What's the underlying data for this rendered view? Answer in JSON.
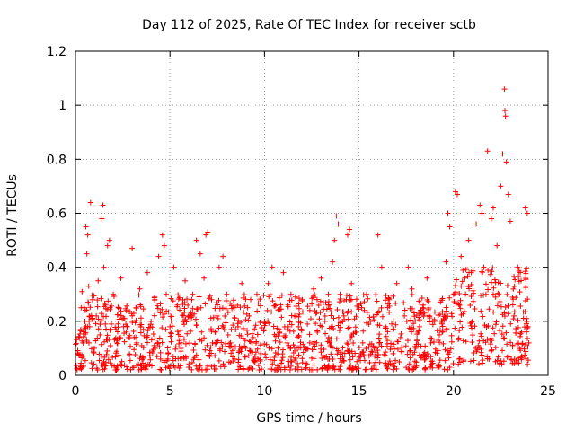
{
  "chart_data": {
    "type": "scatter",
    "title": "Day 112 of 2025, Rate Of TEC Index for receiver sctb",
    "xlabel": "GPS time / hours",
    "ylabel": "ROTI / TECUs",
    "xlim": [
      0,
      25
    ],
    "ylim": [
      0,
      1.2
    ],
    "xticks": [
      0,
      5,
      10,
      15,
      20,
      25
    ],
    "yticks": [
      0,
      0.2,
      0.4,
      0.6,
      0.8,
      1,
      1.2
    ],
    "xtick_labels": [
      "0",
      "5",
      "10",
      "15",
      "20",
      "25"
    ],
    "ytick_labels": [
      "0",
      "0.2",
      "0.4",
      "0.6",
      "0.8",
      "1",
      "1.2"
    ],
    "grid": true,
    "marker": "plus",
    "color": "#ff0000",
    "series": [
      {
        "points": [
          [
            0.1,
            0.08
          ],
          [
            0.2,
            0.14
          ],
          [
            0.3,
            0.25
          ],
          [
            0.35,
            0.31
          ],
          [
            0.4,
            0.12
          ],
          [
            0.5,
            0.2
          ],
          [
            0.55,
            0.55
          ],
          [
            0.6,
            0.45
          ],
          [
            0.65,
            0.52
          ],
          [
            0.7,
            0.33
          ],
          [
            0.75,
            0.18
          ],
          [
            0.8,
            0.64
          ],
          [
            0.9,
            0.28
          ],
          [
            1.0,
            0.1
          ],
          [
            1.1,
            0.22
          ],
          [
            1.2,
            0.35
          ],
          [
            1.3,
            0.15
          ],
          [
            1.4,
            0.58
          ],
          [
            1.45,
            0.63
          ],
          [
            1.5,
            0.4
          ],
          [
            1.6,
            0.26
          ],
          [
            1.7,
            0.48
          ],
          [
            1.8,
            0.5
          ],
          [
            1.9,
            0.19
          ],
          [
            2.0,
            0.3
          ],
          [
            2.2,
            0.12
          ],
          [
            2.4,
            0.36
          ],
          [
            2.6,
            0.21
          ],
          [
            2.8,
            0.14
          ],
          [
            3.0,
            0.47
          ],
          [
            3.2,
            0.25
          ],
          [
            3.4,
            0.32
          ],
          [
            3.6,
            0.17
          ],
          [
            3.8,
            0.38
          ],
          [
            4.0,
            0.2
          ],
          [
            4.2,
            0.28
          ],
          [
            4.4,
            0.44
          ],
          [
            4.6,
            0.52
          ],
          [
            4.7,
            0.48
          ],
          [
            4.8,
            0.3
          ],
          [
            5.0,
            0.18
          ],
          [
            5.2,
            0.4
          ],
          [
            5.4,
            0.26
          ],
          [
            5.6,
            0.12
          ],
          [
            5.8,
            0.35
          ],
          [
            6.0,
            0.22
          ],
          [
            6.2,
            0.3
          ],
          [
            6.4,
            0.5
          ],
          [
            6.6,
            0.45
          ],
          [
            6.8,
            0.36
          ],
          [
            6.9,
            0.52
          ],
          [
            7.0,
            0.53
          ],
          [
            7.2,
            0.28
          ],
          [
            7.4,
            0.16
          ],
          [
            7.6,
            0.4
          ],
          [
            7.8,
            0.44
          ],
          [
            8.0,
            0.3
          ],
          [
            8.2,
            0.12
          ],
          [
            8.4,
            0.25
          ],
          [
            8.6,
            0.18
          ],
          [
            8.8,
            0.34
          ],
          [
            9.0,
            0.1
          ],
          [
            9.2,
            0.22
          ],
          [
            9.4,
            0.14
          ],
          [
            9.6,
            0.3
          ],
          [
            9.8,
            0.08
          ],
          [
            10.0,
            0.2
          ],
          [
            10.2,
            0.34
          ],
          [
            10.4,
            0.4
          ],
          [
            10.6,
            0.26
          ],
          [
            10.8,
            0.16
          ],
          [
            11.0,
            0.38
          ],
          [
            11.2,
            0.12
          ],
          [
            11.4,
            0.3
          ],
          [
            11.6,
            0.22
          ],
          [
            11.8,
            0.18
          ],
          [
            12.0,
            0.28
          ],
          [
            12.2,
            0.1
          ],
          [
            12.4,
            0.24
          ],
          [
            12.6,
            0.32
          ],
          [
            12.8,
            0.16
          ],
          [
            13.0,
            0.36
          ],
          [
            13.2,
            0.2
          ],
          [
            13.4,
            0.14
          ],
          [
            13.6,
            0.42
          ],
          [
            13.7,
            0.5
          ],
          [
            13.8,
            0.59
          ],
          [
            13.9,
            0.56
          ],
          [
            14.0,
            0.3
          ],
          [
            14.2,
            0.22
          ],
          [
            14.4,
            0.52
          ],
          [
            14.5,
            0.54
          ],
          [
            14.6,
            0.34
          ],
          [
            14.8,
            0.16
          ],
          [
            15.0,
            0.26
          ],
          [
            15.2,
            0.12
          ],
          [
            15.4,
            0.3
          ],
          [
            15.6,
            0.2
          ],
          [
            15.8,
            0.1
          ],
          [
            16.0,
            0.52
          ],
          [
            16.2,
            0.4
          ],
          [
            16.4,
            0.18
          ],
          [
            16.6,
            0.28
          ],
          [
            16.8,
            0.08
          ],
          [
            17.0,
            0.34
          ],
          [
            17.2,
            0.14
          ],
          [
            17.4,
            0.22
          ],
          [
            17.6,
            0.4
          ],
          [
            17.8,
            0.32
          ],
          [
            18.0,
            0.1
          ],
          [
            18.2,
            0.18
          ],
          [
            18.4,
            0.26
          ],
          [
            18.6,
            0.36
          ],
          [
            18.8,
            0.12
          ],
          [
            19.0,
            0.2
          ],
          [
            19.2,
            0.04
          ],
          [
            19.4,
            0.16
          ],
          [
            19.6,
            0.42
          ],
          [
            19.7,
            0.6
          ],
          [
            19.8,
            0.55
          ],
          [
            20.0,
            0.3
          ],
          [
            20.1,
            0.68
          ],
          [
            20.2,
            0.67
          ],
          [
            20.4,
            0.44
          ],
          [
            20.6,
            0.36
          ],
          [
            20.8,
            0.5
          ],
          [
            21.0,
            0.2
          ],
          [
            21.2,
            0.56
          ],
          [
            21.4,
            0.63
          ],
          [
            21.5,
            0.6
          ],
          [
            21.6,
            0.4
          ],
          [
            21.8,
            0.83
          ],
          [
            22.0,
            0.58
          ],
          [
            22.1,
            0.62
          ],
          [
            22.3,
            0.48
          ],
          [
            22.4,
            0.3
          ],
          [
            22.5,
            0.7
          ],
          [
            22.6,
            0.82
          ],
          [
            22.7,
            1.06
          ],
          [
            22.72,
            0.98
          ],
          [
            22.75,
            0.96
          ],
          [
            22.8,
            0.79
          ],
          [
            22.9,
            0.67
          ],
          [
            23.0,
            0.57
          ],
          [
            23.2,
            0.22
          ],
          [
            23.4,
            0.4
          ],
          [
            23.6,
            0.16
          ],
          [
            23.8,
            0.62
          ],
          [
            23.9,
            0.6
          ]
        ]
      }
    ],
    "density_bands": [
      {
        "from": 0.0,
        "to": 20.0,
        "low": 0.02,
        "high": 0.3
      },
      {
        "from": 20.0,
        "to": 24.0,
        "low": 0.04,
        "high": 0.4
      }
    ]
  }
}
